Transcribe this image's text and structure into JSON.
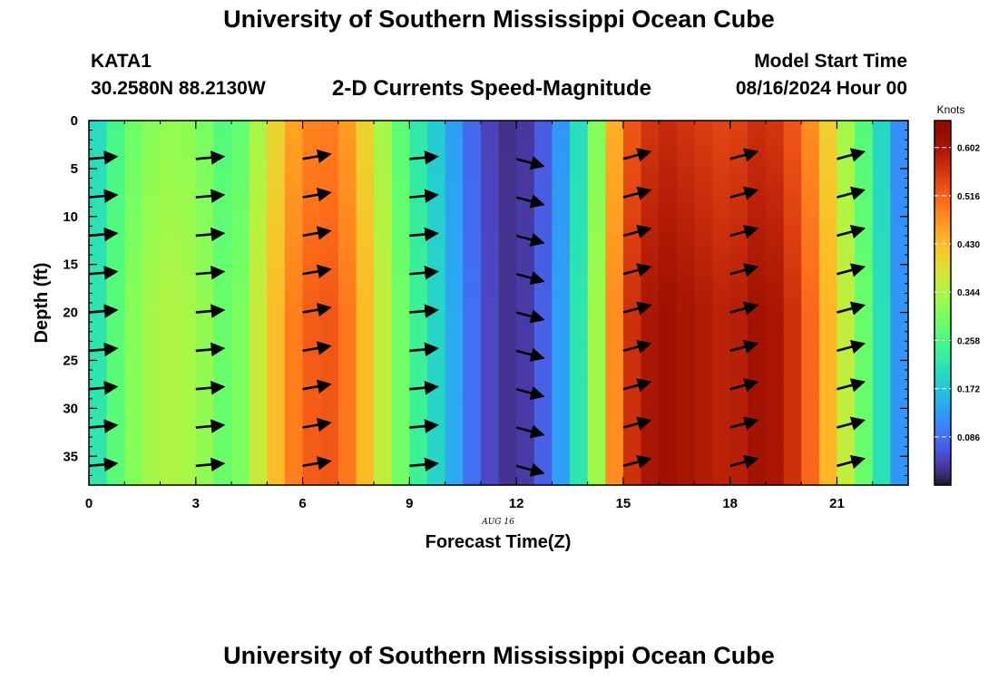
{
  "header": {
    "title": "University of Southern Mississippi Ocean Cube",
    "station": "KATA1",
    "coords": "30.2580N  88.2130W",
    "subtitle": "2-D Currents Speed-Magnitude",
    "model_start_label": "Model Start Time",
    "model_start_value": "08/16/2024 Hour 00"
  },
  "footer": {
    "title": "University of Southern Mississippi Ocean Cube"
  },
  "chart_data": {
    "type": "heatmap",
    "title": "2-D Currents Speed-Magnitude",
    "xlabel": "Forecast Time(Z)",
    "ylabel": "Depth (ft)",
    "date_label": "AUG 16",
    "xlim": [
      0,
      23
    ],
    "ylim": [
      0,
      38
    ],
    "y_inverted": true,
    "x_ticks": [
      "0",
      "3",
      "6",
      "9",
      "12",
      "15",
      "18",
      "21"
    ],
    "y_ticks": [
      "0",
      "5",
      "10",
      "15",
      "20",
      "25",
      "30",
      "35"
    ],
    "colorbar": {
      "label": "Knots",
      "range": [
        0,
        0.65
      ],
      "ticks": [
        "0.086",
        "0.172",
        "0.258",
        "0.344",
        "0.430",
        "0.516",
        "0.602"
      ],
      "colormap": "turbo"
    },
    "hours": [
      0,
      1,
      2,
      3,
      4,
      5,
      6,
      7,
      8,
      9,
      10,
      11,
      12,
      13,
      14,
      15,
      16,
      17,
      18,
      19,
      20,
      21,
      22,
      23
    ],
    "speed_by_hour_knots": [
      0.19,
      0.3,
      0.35,
      0.34,
      0.27,
      0.4,
      0.52,
      0.53,
      0.4,
      0.26,
      0.17,
      0.06,
      0.02,
      0.09,
      0.26,
      0.55,
      0.62,
      0.6,
      0.58,
      0.62,
      0.55,
      0.4,
      0.25,
      0.08
    ],
    "vectors": {
      "hours": [
        0,
        3,
        6,
        9,
        12,
        15,
        18,
        21
      ],
      "depths_ft": [
        4,
        8,
        12,
        16,
        20,
        24,
        28,
        32,
        36
      ],
      "direction_deg": [
        5,
        5,
        10,
        5,
        -15,
        15,
        15,
        15
      ]
    },
    "grid": false,
    "legend": "colorbar-right"
  }
}
